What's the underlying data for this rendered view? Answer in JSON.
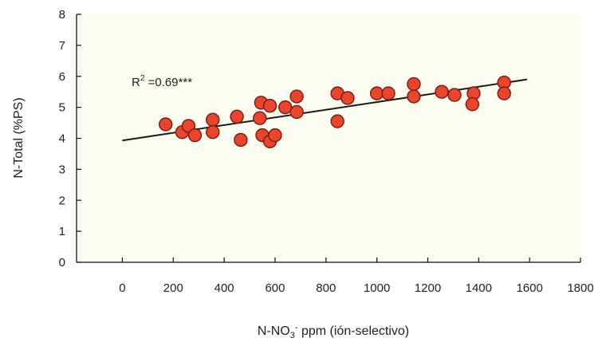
{
  "chart_data": {
    "type": "scatter",
    "title": "",
    "xlabel": "N-NO3- ppm (ión-selectivo)",
    "xlabel_parts": {
      "pre": "N-NO",
      "sub": "3",
      "sup": "-",
      "post": " ppm (ión-selectivo)"
    },
    "ylabel": "N-Total (%PS)",
    "xlim": [
      -180,
      1800
    ],
    "ylim": [
      0,
      8
    ],
    "xticks": [
      0,
      200,
      400,
      600,
      800,
      1000,
      1200,
      1400,
      1600,
      1800
    ],
    "yticks": [
      0,
      1,
      2,
      3,
      4,
      5,
      6,
      7,
      8
    ],
    "grid": false,
    "annotation": {
      "text": "R2 =0.69***",
      "base": "R",
      "sup": "2",
      "rest": " =0.69***"
    },
    "trendline": {
      "x": [
        0,
        1590
      ],
      "y": [
        3.93,
        5.9
      ]
    },
    "marker_color": "#e8452c",
    "marker_edge": "#7a1a10",
    "line_color": "#1a1a1a",
    "points": [
      {
        "x": 170,
        "y": 4.45
      },
      {
        "x": 235,
        "y": 4.2
      },
      {
        "x": 260,
        "y": 4.4
      },
      {
        "x": 285,
        "y": 4.1
      },
      {
        "x": 355,
        "y": 4.6
      },
      {
        "x": 355,
        "y": 4.2
      },
      {
        "x": 450,
        "y": 4.7
      },
      {
        "x": 465,
        "y": 3.95
      },
      {
        "x": 545,
        "y": 5.15
      },
      {
        "x": 540,
        "y": 4.65
      },
      {
        "x": 550,
        "y": 4.1
      },
      {
        "x": 580,
        "y": 5.05
      },
      {
        "x": 580,
        "y": 3.9
      },
      {
        "x": 600,
        "y": 4.1
      },
      {
        "x": 640,
        "y": 5.0
      },
      {
        "x": 685,
        "y": 5.35
      },
      {
        "x": 685,
        "y": 4.85
      },
      {
        "x": 845,
        "y": 5.45
      },
      {
        "x": 845,
        "y": 4.55
      },
      {
        "x": 885,
        "y": 5.3
      },
      {
        "x": 1000,
        "y": 5.45
      },
      {
        "x": 1045,
        "y": 5.45
      },
      {
        "x": 1145,
        "y": 5.75
      },
      {
        "x": 1145,
        "y": 5.35
      },
      {
        "x": 1255,
        "y": 5.5
      },
      {
        "x": 1305,
        "y": 5.4
      },
      {
        "x": 1380,
        "y": 5.45
      },
      {
        "x": 1375,
        "y": 5.1
      },
      {
        "x": 1500,
        "y": 5.8
      },
      {
        "x": 1500,
        "y": 5.45
      }
    ]
  }
}
